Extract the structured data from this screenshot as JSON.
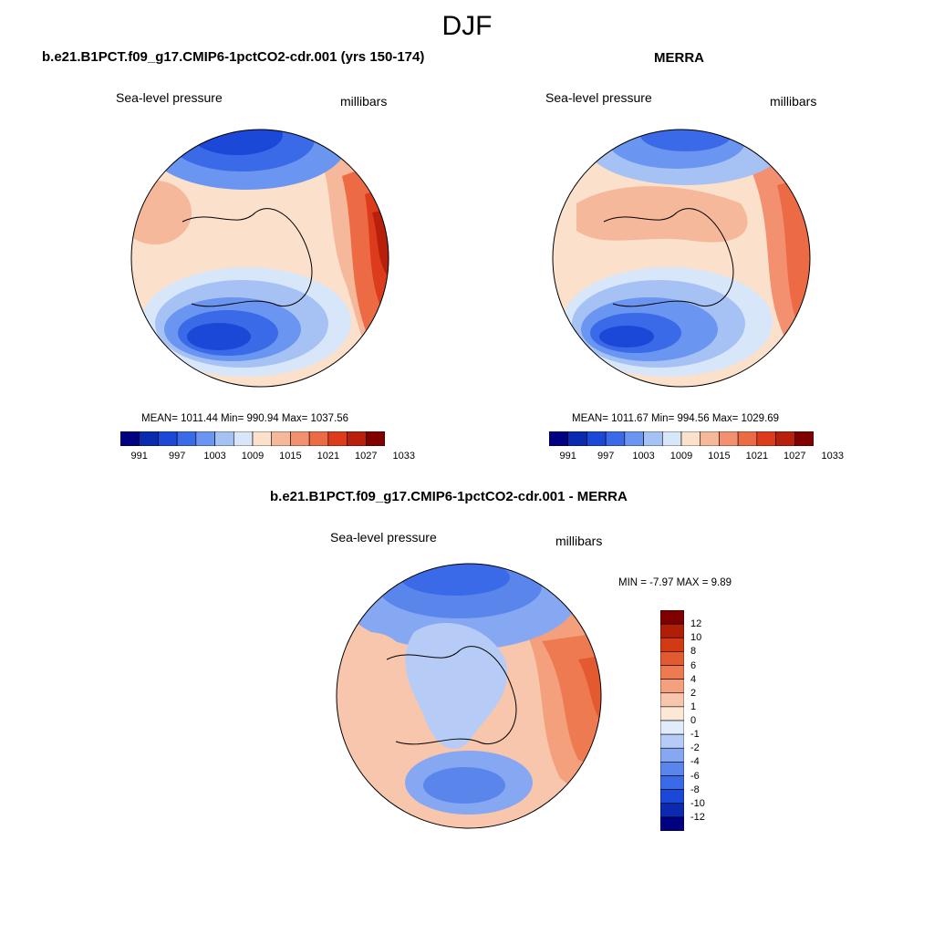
{
  "figure": {
    "season": "DJF",
    "panels": [
      {
        "title": "b.e21.B1PCT.f09_g17.CMIP6-1pctCO2-cdr.001 (yrs 150-174)",
        "variable": "Sea-level pressure",
        "units": "millibars",
        "stats": "MEAN= 1011.44  Min= 990.94  Max= 1037.56"
      },
      {
        "title": "MERRA",
        "variable": "Sea-level pressure",
        "units": "millibars",
        "stats": "MEAN= 1011.67  Min= 994.56  Max= 1029.69"
      },
      {
        "title": "b.e21.B1PCT.f09_g17.CMIP6-1pctCO2-cdr.001 - MERRA",
        "variable": "Sea-level pressure",
        "units": "millibars",
        "stats": "MIN =  -7.97 MAX =   9.89"
      }
    ],
    "colorbar_abs": {
      "colors": [
        "#000080",
        "#0a2bb0",
        "#1c48d8",
        "#3a6ae8",
        "#6a95f0",
        "#a6c2f4",
        "#d8e6fa",
        "#fbe0cc",
        "#f6b89a",
        "#f29070",
        "#ec6a44",
        "#dc3c1c",
        "#b8200c",
        "#800000"
      ],
      "tick_labels": [
        "991",
        "997",
        "1003",
        "1009",
        "1015",
        "1021",
        "1027",
        "1033"
      ]
    },
    "colorbar_diff": {
      "colors": [
        "#000080",
        "#0a2bb0",
        "#1c48d8",
        "#3a6ae8",
        "#5a86ec",
        "#86a8f2",
        "#b6ccf6",
        "#e0ecfc",
        "#fde8d8",
        "#f8c6ac",
        "#f4a07c",
        "#ee7a52",
        "#e45a30",
        "#d23a14",
        "#b01e08",
        "#800000"
      ],
      "tick_labels": [
        "12",
        "10",
        "8",
        "6",
        "4",
        "2",
        "1",
        "0",
        "-1",
        "-2",
        "-4",
        "-6",
        "-8",
        "-10",
        "-12"
      ]
    }
  }
}
